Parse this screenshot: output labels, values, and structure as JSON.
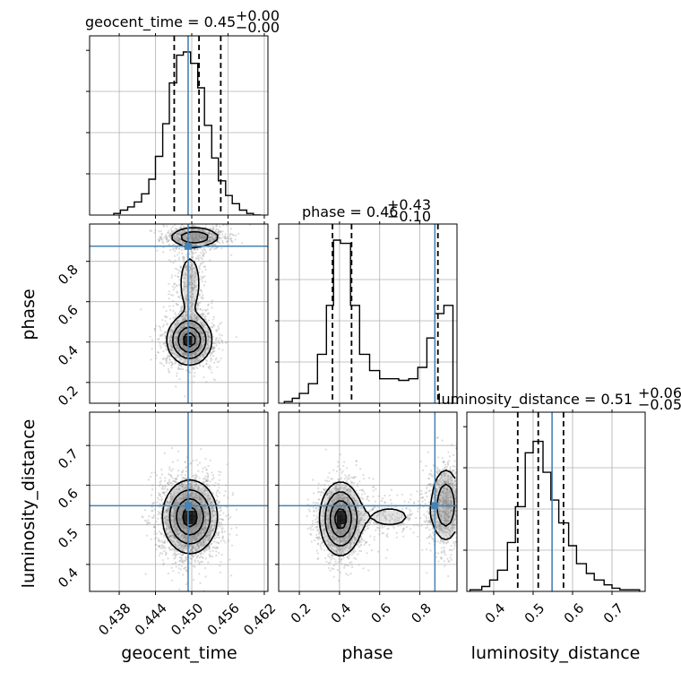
{
  "chart_data": {
    "type": "corner",
    "parameters": [
      "geocent_time",
      "phase",
      "luminosity_distance"
    ],
    "axis_labels": {
      "geocent_time": "geocent_time",
      "phase": "phase",
      "luminosity_distance": "luminosity_distance"
    },
    "ranges": {
      "geocent_time": [
        0.4331,
        0.4626
      ],
      "phase": [
        0.097,
        0.985
      ],
      "luminosity_distance": [
        0.332,
        0.784
      ]
    },
    "ticks": {
      "geocent_time": [
        0.438,
        0.444,
        0.45,
        0.456,
        0.462
      ],
      "phase": [
        0.2,
        0.4,
        0.6,
        0.8
      ],
      "luminosity_distance": [
        0.4,
        0.5,
        0.6,
        0.7
      ]
    },
    "tick_labels": {
      "geocent_time": [
        "0.438",
        "0.444",
        "0.450",
        "0.456",
        "0.462"
      ],
      "phase": [
        "0.2",
        "0.4",
        "0.6",
        "0.8"
      ],
      "luminosity_distance": [
        "0.4",
        "0.5",
        "0.6",
        "0.7"
      ]
    },
    "truths": {
      "geocent_time": 0.4494,
      "phase": 0.875,
      "luminosity_distance": 0.548
    },
    "quantiles": {
      "geocent_time": [
        0.4471,
        0.4512,
        0.4548
      ],
      "phase": [
        0.365,
        0.46,
        0.89
      ],
      "luminosity_distance": [
        0.461,
        0.513,
        0.577
      ]
    },
    "titles": {
      "geocent_time": {
        "name": "geocent_time",
        "value": "0.45",
        "plus": "+0.00",
        "minus": "−0.00"
      },
      "phase": {
        "name": "phase",
        "value": "0.46",
        "plus": "+0.43",
        "minus": "−0.10"
      },
      "luminosity_distance": {
        "name": "luminosity_distance",
        "value": "0.51",
        "plus": "+0.06",
        "minus": "−0.05"
      }
    },
    "histograms": {
      "geocent_time": {
        "bin_edges": [
          0.4371,
          0.4382,
          0.4394,
          0.4405,
          0.4417,
          0.4429,
          0.444,
          0.4452,
          0.4463,
          0.4475,
          0.4486,
          0.4498,
          0.451,
          0.4521,
          0.4533,
          0.4544,
          0.4556,
          0.4567,
          0.4579,
          0.4591,
          0.4602,
          0.4614
        ],
        "counts": [
          0.01,
          0.03,
          0.05,
          0.08,
          0.13,
          0.22,
          0.36,
          0.56,
          0.81,
          0.98,
          1.0,
          0.93,
          0.78,
          0.55,
          0.35,
          0.21,
          0.12,
          0.07,
          0.03,
          0.01,
          0.0
        ]
      },
      "phase": {
        "bin_edges": [
          0.125,
          0.165,
          0.2,
          0.245,
          0.29,
          0.335,
          0.37,
          0.405,
          0.455,
          0.5,
          0.55,
          0.6,
          0.65,
          0.695,
          0.745,
          0.79,
          0.835,
          0.875,
          0.92,
          0.965
        ],
        "counts": [
          0.01,
          0.03,
          0.06,
          0.12,
          0.3,
          0.6,
          1.0,
          0.98,
          0.6,
          0.3,
          0.2,
          0.15,
          0.15,
          0.14,
          0.15,
          0.22,
          0.4,
          0.55,
          0.6
        ]
      },
      "luminosity_distance": {
        "bin_edges": [
          0.34,
          0.37,
          0.39,
          0.41,
          0.435,
          0.455,
          0.48,
          0.5,
          0.525,
          0.545,
          0.565,
          0.59,
          0.61,
          0.635,
          0.655,
          0.68,
          0.7,
          0.72,
          0.745,
          0.77
        ],
        "counts": [
          0.01,
          0.03,
          0.07,
          0.13,
          0.3,
          0.52,
          0.85,
          0.92,
          0.73,
          0.56,
          0.42,
          0.28,
          0.17,
          0.11,
          0.07,
          0.04,
          0.02,
          0.01,
          0.01
        ]
      }
    },
    "density_2d": [
      {
        "x": "geocent_time",
        "y": "phase",
        "modes": [
          {
            "x": 0.4496,
            "y": 0.41,
            "sx": 0.0018,
            "sy": 0.06,
            "w": 1.0
          },
          {
            "x": 0.4505,
            "y": 0.92,
            "sx": 0.0022,
            "sy": 0.025,
            "w": 0.55
          },
          {
            "x": 0.4497,
            "y": 0.69,
            "sx": 0.0012,
            "sy": 0.1,
            "w": 0.25
          }
        ]
      },
      {
        "x": "geocent_time",
        "y": "luminosity_distance",
        "modes": [
          {
            "x": 0.4497,
            "y": 0.52,
            "sx": 0.0022,
            "sy": 0.045,
            "w": 1.0
          }
        ]
      },
      {
        "x": "phase",
        "y": "luminosity_distance",
        "modes": [
          {
            "x": 0.405,
            "y": 0.515,
            "sx": 0.05,
            "sy": 0.045,
            "w": 1.0
          },
          {
            "x": 0.93,
            "y": 0.55,
            "sx": 0.04,
            "sy": 0.05,
            "w": 0.55
          },
          {
            "x": 0.65,
            "y": 0.52,
            "sx": 0.12,
            "sy": 0.03,
            "w": 0.15
          }
        ]
      }
    ],
    "colors": {
      "truth": "#4682b4",
      "histogram": "#000000",
      "quantile": "#000000",
      "grid": "#b0b0b0",
      "samples": "#9a9a9a",
      "density_dark": "#000000"
    }
  }
}
